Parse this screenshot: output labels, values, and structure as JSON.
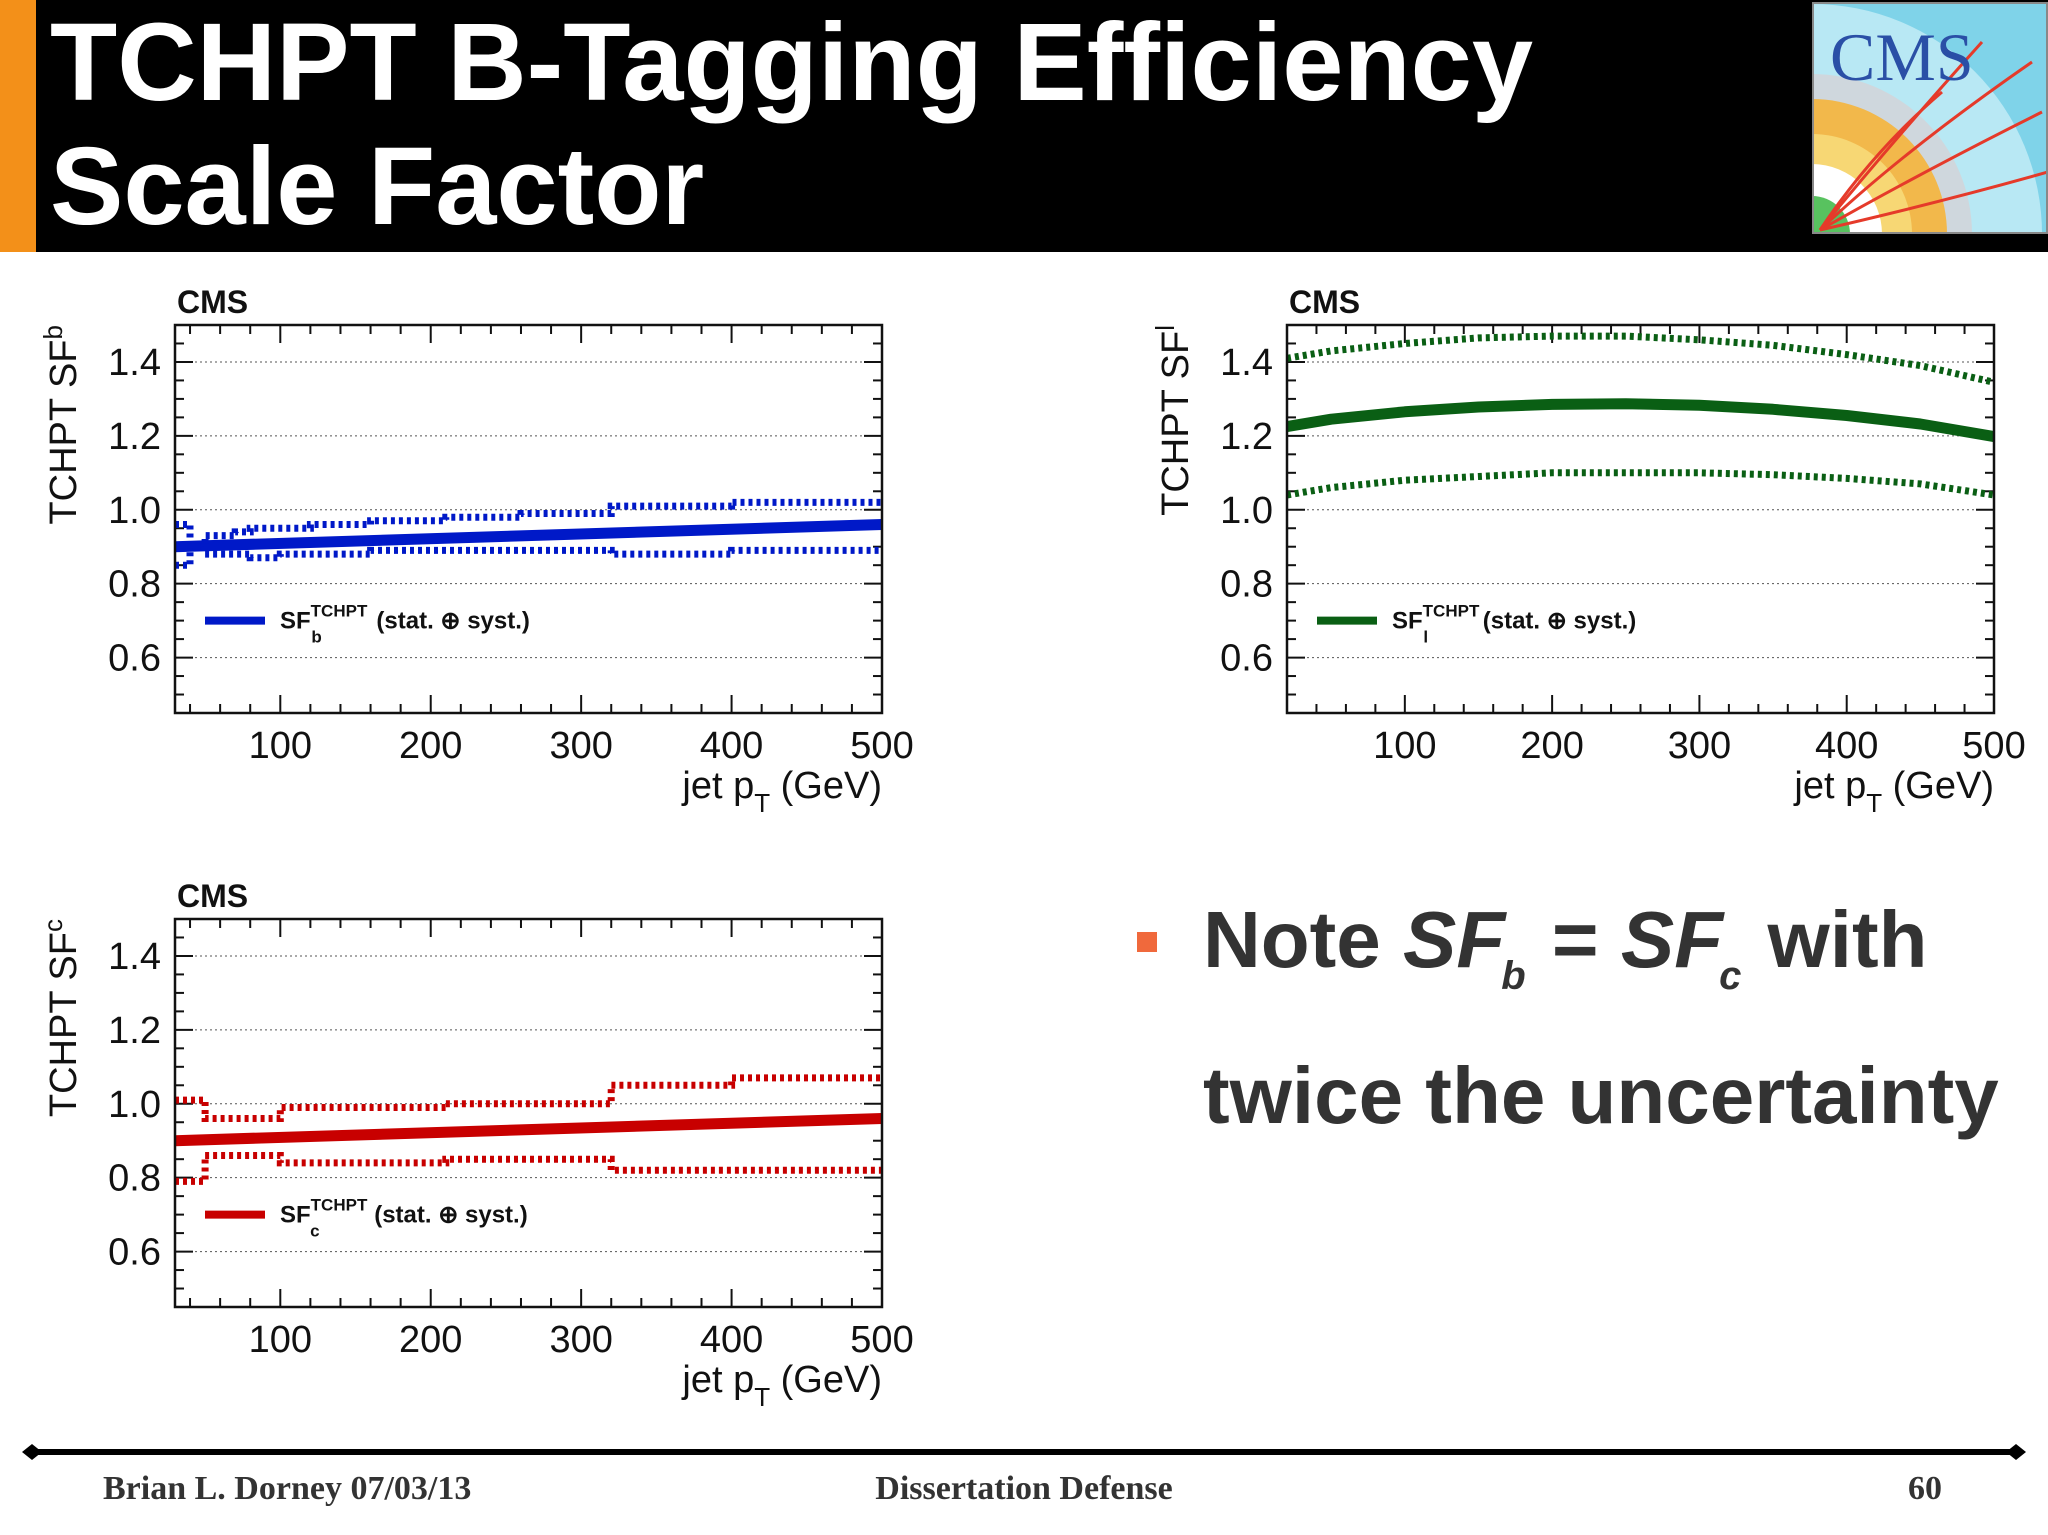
{
  "slide": {
    "title_line1": "TCHPT B-Tagging Efficiency",
    "title_line2": "Scale Factor",
    "logo_text": "CMS",
    "note": {
      "part1": "Note ",
      "sf1": "SF",
      "sub1": "b",
      "eq": " = ",
      "sf2": "SF",
      "sub2": "c",
      "part2": " with",
      "line2": "twice the uncertainty"
    },
    "footer": {
      "left": "Brian L. Dorney 07/03/13",
      "center": "Dissertation Defense",
      "right": "60"
    }
  },
  "colors": {
    "title_background": "#000000",
    "title_accent": "#f39019",
    "bullet": "#f0693c",
    "sf_b": "#0019c8",
    "sf_l": "#0a5f14",
    "sf_c": "#c80000"
  },
  "chart_data": [
    {
      "type": "line",
      "id": "sfb",
      "cms_label": "CMS",
      "ylabel": "TCHPT SF",
      "ylabel_sub": "b",
      "xlabel": "jet p",
      "xlabel_sub": "T",
      "xlabel_unit": " (GeV)",
      "xlim": [
        30,
        500
      ],
      "ylim": [
        0.45,
        1.5
      ],
      "xticks": [
        100,
        200,
        300,
        400,
        500
      ],
      "yticks": [
        0.6,
        0.8,
        1.0,
        1.2,
        1.4
      ],
      "ytick_labels": [
        "0.6",
        "0.8",
        "1.0",
        "1.2",
        "1.4"
      ],
      "grid_y": true,
      "color": "#0019c8",
      "legend": {
        "symbol": "SF",
        "sub": "b",
        "sup": "TCHPT",
        "text": "(stat. ⊕ syst.)",
        "position": "lower-left"
      },
      "series": [
        {
          "role": "central",
          "x": [
            30,
            500
          ],
          "y": [
            0.9,
            0.96
          ]
        },
        {
          "role": "upper",
          "step": true,
          "x": [
            30,
            40,
            50,
            60,
            70,
            80,
            100,
            120,
            160,
            210,
            260,
            320,
            400,
            500
          ],
          "y": [
            0.96,
            0.9,
            0.93,
            0.93,
            0.94,
            0.95,
            0.95,
            0.96,
            0.97,
            0.98,
            0.99,
            1.01,
            1.02,
            1.04
          ]
        },
        {
          "role": "lower",
          "step": true,
          "x": [
            30,
            40,
            50,
            60,
            70,
            80,
            100,
            120,
            160,
            210,
            260,
            320,
            400,
            500
          ],
          "y": [
            0.85,
            0.9,
            0.88,
            0.88,
            0.88,
            0.87,
            0.88,
            0.88,
            0.89,
            0.89,
            0.89,
            0.88,
            0.89,
            0.87
          ]
        }
      ]
    },
    {
      "type": "line",
      "id": "sfl",
      "cms_label": "CMS",
      "ylabel": "TCHPT SF",
      "ylabel_sub": "l",
      "xlabel": "jet p",
      "xlabel_sub": "T",
      "xlabel_unit": " (GeV)",
      "xlim": [
        20,
        500
      ],
      "ylim": [
        0.45,
        1.5
      ],
      "xticks": [
        100,
        200,
        300,
        400,
        500
      ],
      "yticks": [
        0.6,
        0.8,
        1.0,
        1.2,
        1.4
      ],
      "ytick_labels": [
        "0.6",
        "0.8",
        "1.0",
        "1.2",
        "1.4"
      ],
      "grid_y": true,
      "color": "#0a5f14",
      "legend": {
        "symbol": "SF",
        "sub": "l",
        "sup": "TCHPT",
        "text": "(stat. ⊕ syst.)",
        "position": "lower-left"
      },
      "series": [
        {
          "role": "central",
          "x": [
            20,
            50,
            100,
            150,
            200,
            250,
            300,
            350,
            400,
            450,
            500
          ],
          "y": [
            1.225,
            1.245,
            1.265,
            1.278,
            1.285,
            1.287,
            1.283,
            1.272,
            1.255,
            1.232,
            1.198
          ]
        },
        {
          "role": "upper",
          "x": [
            20,
            50,
            100,
            150,
            200,
            250,
            300,
            350,
            400,
            450,
            500
          ],
          "y": [
            1.41,
            1.43,
            1.45,
            1.465,
            1.47,
            1.47,
            1.46,
            1.445,
            1.42,
            1.39,
            1.345
          ]
        },
        {
          "role": "lower",
          "x": [
            20,
            50,
            100,
            150,
            200,
            250,
            300,
            350,
            400,
            450,
            500
          ],
          "y": [
            1.04,
            1.06,
            1.08,
            1.09,
            1.1,
            1.1,
            1.1,
            1.095,
            1.085,
            1.07,
            1.04
          ]
        }
      ]
    },
    {
      "type": "line",
      "id": "sfc",
      "cms_label": "CMS",
      "ylabel": "TCHPT SF",
      "ylabel_sub": "c",
      "xlabel": "jet p",
      "xlabel_sub": "T",
      "xlabel_unit": " (GeV)",
      "xlim": [
        30,
        500
      ],
      "ylim": [
        0.45,
        1.5
      ],
      "xticks": [
        100,
        200,
        300,
        400,
        500
      ],
      "yticks": [
        0.6,
        0.8,
        1.0,
        1.2,
        1.4
      ],
      "ytick_labels": [
        "0.6",
        "0.8",
        "1.0",
        "1.2",
        "1.4"
      ],
      "grid_y": true,
      "color": "#c80000",
      "legend": {
        "symbol": "SF",
        "sub": "c",
        "sup": "TCHPT",
        "text": "(stat. ⊕ syst.)",
        "position": "lower-left"
      },
      "series": [
        {
          "role": "central",
          "x": [
            30,
            500
          ],
          "y": [
            0.9,
            0.96
          ]
        },
        {
          "role": "upper",
          "step": true,
          "x": [
            30,
            50,
            100,
            160,
            210,
            260,
            320,
            400,
            500
          ],
          "y": [
            1.01,
            0.96,
            0.99,
            0.99,
            1.0,
            1.0,
            1.05,
            1.07,
            1.09
          ]
        },
        {
          "role": "lower",
          "step": true,
          "x": [
            30,
            50,
            100,
            160,
            210,
            260,
            320,
            400,
            500
          ],
          "y": [
            0.79,
            0.86,
            0.84,
            0.84,
            0.85,
            0.85,
            0.82,
            0.82,
            0.83
          ]
        }
      ]
    }
  ]
}
